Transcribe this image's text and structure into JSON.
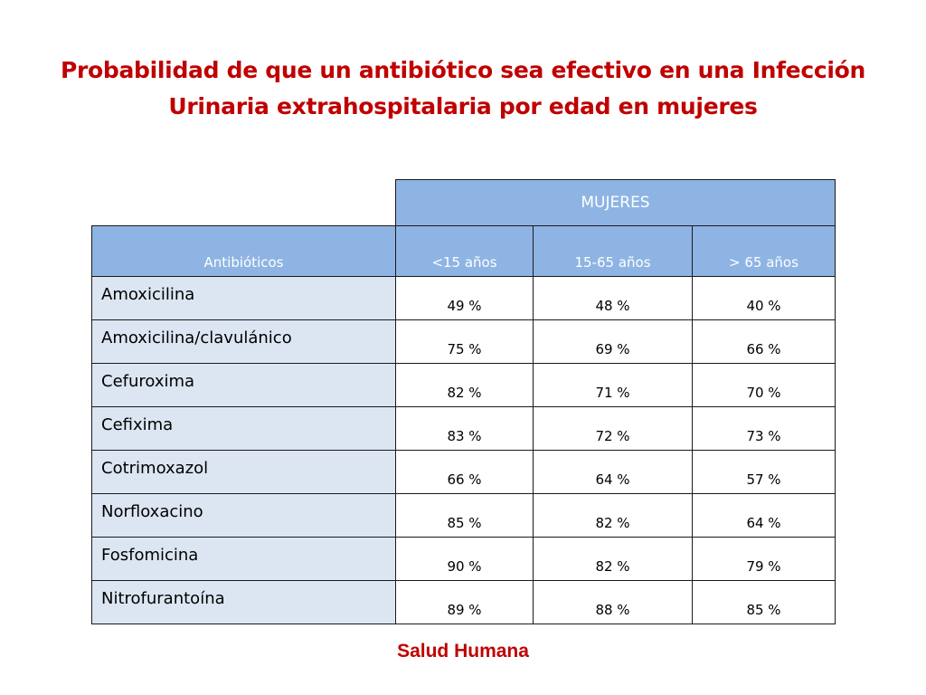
{
  "title": {
    "line1": "Probabilidad de que un antibiótico sea efectivo en una Infección",
    "line2": "Urinaria  extrahospitalaria por edad en mujeres"
  },
  "table": {
    "group_header": "MUJERES",
    "columns": [
      "Antibióticos",
      "<15 años",
      "15-65 años",
      "> 65 años"
    ],
    "rows": [
      {
        "name": "Amoxicilina",
        "values": [
          "49 %",
          "48 %",
          "40 %"
        ]
      },
      {
        "name": "Amoxicilina/clavulánico",
        "values": [
          "75 %",
          "69 %",
          "66 %"
        ]
      },
      {
        "name": "Cefuroxima",
        "values": [
          "82 %",
          "71 %",
          "70 %"
        ]
      },
      {
        "name": "Cefixima",
        "values": [
          "83 %",
          "72 %",
          "73 %"
        ]
      },
      {
        "name": "Cotrimoxazol",
        "values": [
          "66 %",
          "64 %",
          "57 %"
        ]
      },
      {
        "name": "Norfloxacino",
        "values": [
          "85 %",
          "82 %",
          "64 %"
        ]
      },
      {
        "name": "Fosfomicina",
        "values": [
          "90 %",
          "82 %",
          "79 %"
        ]
      },
      {
        "name": "Nitrofurantoína",
        "values": [
          "89 %",
          "88 %",
          "85 %"
        ]
      }
    ]
  },
  "footer": "Salud Humana",
  "colors": {
    "title": "#c00000",
    "header_fill": "#8eb4e3",
    "name_fill": "#dce6f2"
  }
}
